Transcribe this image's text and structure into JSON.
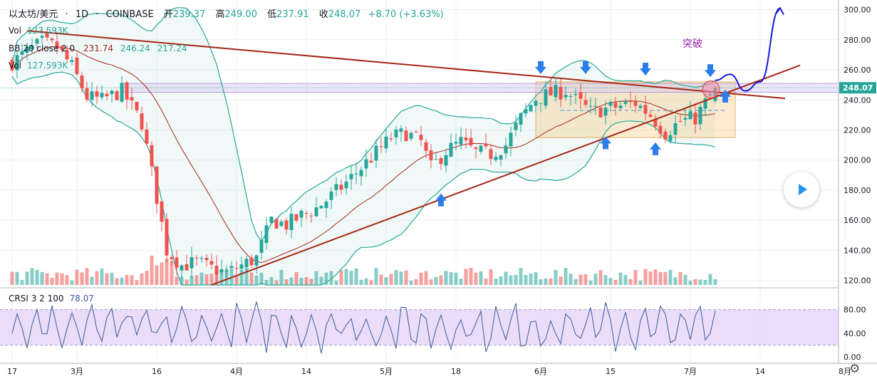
{
  "header": {
    "symbol": "以太坊/美元",
    "interval": "1D",
    "exchange": "COINBASE",
    "open_label": "开",
    "open_value": "239.37",
    "high_label": "高",
    "high_value": "249.00",
    "low_label": "低",
    "low_value": "237.91",
    "close_label": "收",
    "close_value": "248.07",
    "change": "+8.70 (+3.63%)"
  },
  "legends": {
    "vol_label": "Vol",
    "vol_value": "127.593K",
    "bb_label": "BB 20 close 2 0",
    "bb_middle": "231.74",
    "bb_upper": "246.24",
    "bb_lower": "217.24",
    "crsi_label": "CRSI 3 2 100",
    "crsi_value": "78.07"
  },
  "annotation_text": "突破",
  "last_price_tag": "248.07",
  "colors": {
    "up": "#26a69a",
    "down": "#ef5350",
    "bb_band": "#26a69a",
    "bb_mid": "#a52714",
    "trendline": "#a52714",
    "arrow": "#2b7de9",
    "projection": "#1a1ad6",
    "annotation": "#9c27b0",
    "crsi_line": "#3a5a9a",
    "crsi_band": "#e6d4f7"
  },
  "chart_data": {
    "type": "candlestick",
    "price_axis": {
      "ticks": [
        "300.00",
        "280.00",
        "260.00",
        "240.00",
        "220.00",
        "200.00",
        "180.00",
        "160.00",
        "140.00",
        "120.00"
      ],
      "ylim": [
        117,
        305
      ]
    },
    "crsi_axis": {
      "ticks": [
        "80.00",
        "40.00",
        "0.00"
      ],
      "ylim": [
        0,
        100
      ],
      "band": [
        20,
        80
      ]
    },
    "x_labels": [
      {
        "day": 0,
        "label": "17"
      },
      {
        "day": 13,
        "label": "3月"
      },
      {
        "day": 29,
        "label": "16"
      },
      {
        "day": 45,
        "label": "4月"
      },
      {
        "day": 59,
        "label": "14"
      },
      {
        "day": 75,
        "label": "5月"
      },
      {
        "day": 89,
        "label": "18"
      },
      {
        "day": 106,
        "label": "6月"
      },
      {
        "day": 120,
        "label": "15"
      },
      {
        "day": 136,
        "label": "7月"
      },
      {
        "day": 150,
        "label": "14"
      },
      {
        "day": 167,
        "label": "8月"
      }
    ],
    "last_day": 141,
    "future_days": 28,
    "anchors": [
      [
        0,
        265
      ],
      [
        3,
        272
      ],
      [
        6,
        278
      ],
      [
        9,
        275
      ],
      [
        12,
        262
      ],
      [
        15,
        242
      ],
      [
        18,
        240
      ],
      [
        22,
        246
      ],
      [
        26,
        225
      ],
      [
        29,
        175
      ],
      [
        31,
        140
      ],
      [
        34,
        130
      ],
      [
        37,
        132
      ],
      [
        40,
        128
      ],
      [
        43,
        125
      ],
      [
        46,
        130
      ],
      [
        49,
        135
      ],
      [
        52,
        160
      ],
      [
        55,
        157
      ],
      [
        58,
        163
      ],
      [
        61,
        168
      ],
      [
        64,
        176
      ],
      [
        67,
        185
      ],
      [
        70,
        195
      ],
      [
        73,
        205
      ],
      [
        76,
        215
      ],
      [
        79,
        218
      ],
      [
        82,
        212
      ],
      [
        84,
        195
      ],
      [
        87,
        206
      ],
      [
        90,
        212
      ],
      [
        93,
        205
      ],
      [
        96,
        204
      ],
      [
        99,
        210
      ],
      [
        102,
        228
      ],
      [
        105,
        241
      ],
      [
        108,
        244
      ],
      [
        111,
        246
      ],
      [
        113,
        240
      ],
      [
        116,
        232
      ],
      [
        119,
        234
      ],
      [
        122,
        236
      ],
      [
        125,
        238
      ],
      [
        128,
        230
      ],
      [
        131,
        218
      ],
      [
        134,
        226
      ],
      [
        137,
        228
      ],
      [
        139,
        238
      ],
      [
        141,
        248
      ]
    ],
    "resistance_zone": {
      "from_day": 105,
      "to_day": 145,
      "low": 215,
      "high": 252
    },
    "breakout_band": {
      "low": 245,
      "high": 251
    },
    "trendlines": [
      {
        "name": "descending",
        "from": [
          3,
          286
        ],
        "to": [
          155,
          241
        ]
      },
      {
        "name": "ascending",
        "from": [
          40,
          117
        ],
        "to": [
          158,
          263
        ]
      }
    ],
    "crsi_series": "oscillator 10-95, last 78.07",
    "arrows_down": [
      [
        106,
        261
      ],
      [
        115,
        261
      ],
      [
        127,
        260
      ],
      [
        140,
        259
      ]
    ],
    "arrows_up": [
      [
        86,
        174
      ],
      [
        119,
        212
      ],
      [
        129,
        208
      ],
      [
        143,
        243
      ]
    ],
    "projection_path": [
      [
        141,
        253
      ],
      [
        144,
        257
      ],
      [
        147,
        246
      ],
      [
        150,
        252
      ],
      [
        154,
        301
      ]
    ]
  }
}
